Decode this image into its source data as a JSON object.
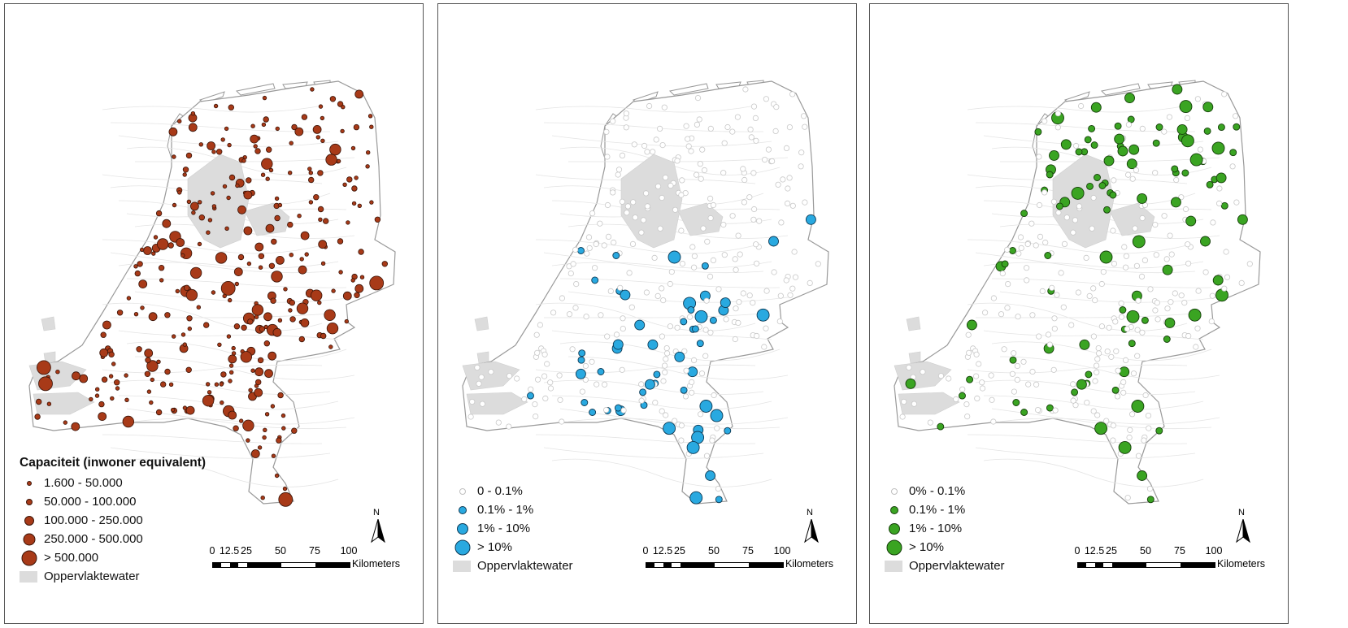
{
  "panels": [
    {
      "id": "capacity",
      "legend_title": "Capaciteit (inwoner equivalent)",
      "classes": [
        "1.600 - 50.000",
        "50.000 - 100.000",
        "100.000 - 250.000",
        "250.000 - 500.000",
        "> 500.000"
      ],
      "water_label": "Oppervlaktewater",
      "fill": "#a83a18",
      "stroke": "#3a1408"
    },
    {
      "id": "share-blue",
      "legend_title": "",
      "classes": [
        "0 - 0.1%",
        "0.1% - 1%",
        "1% - 10%",
        "> 10%"
      ],
      "water_label": "Oppervlaktewater",
      "fill": "#29a9e0",
      "stroke": "#0d3a55"
    },
    {
      "id": "share-green",
      "legend_title": "",
      "classes": [
        "0% - 0.1%",
        "0.1% - 1%",
        "1% - 10%",
        "> 10%"
      ],
      "water_label": "Oppervlaktewater",
      "fill": "#3aa422",
      "stroke": "#163f0b"
    }
  ],
  "scale": {
    "ticks": [
      "0",
      "12.5",
      "25",
      "50",
      "75",
      "100"
    ],
    "unit": "Kilometers"
  },
  "north_label": "N",
  "colors": {
    "water": "#dcdcdc",
    "outline": "#b0b0b0",
    "empty_circle": "#c8c8c8"
  }
}
